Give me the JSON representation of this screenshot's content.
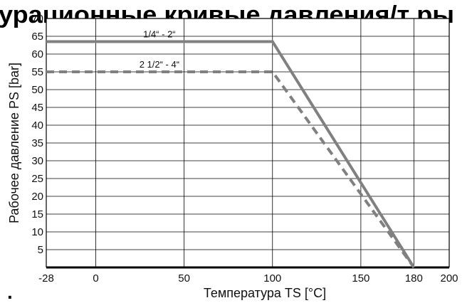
{
  "header": {
    "title_fragment": "урационные кривые давления/т ры"
  },
  "chart_data": {
    "type": "line",
    "xlabel": "Температура TS [°C]",
    "ylabel": "Рабочее давление PS [bar]",
    "xlim": [
      -28,
      200
    ],
    "ylim": [
      0,
      70
    ],
    "x_ticks": [
      -28,
      0,
      50,
      100,
      150,
      180,
      200
    ],
    "y_ticks": [
      5,
      10,
      15,
      20,
      25,
      30,
      35,
      40,
      45,
      50,
      55,
      60,
      65,
      70
    ],
    "grid": true,
    "series": [
      {
        "name": "1/4“ - 2“",
        "style": "solid",
        "color": "#808080",
        "x": [
          -28,
          100,
          180
        ],
        "y": [
          63.5,
          63.5,
          0
        ]
      },
      {
        "name": "2 1/2“ - 4“",
        "style": "dashed",
        "color": "#808080",
        "x": [
          -28,
          100,
          180
        ],
        "y": [
          55,
          55,
          0
        ]
      }
    ]
  },
  "footer": {
    "mark": "."
  }
}
